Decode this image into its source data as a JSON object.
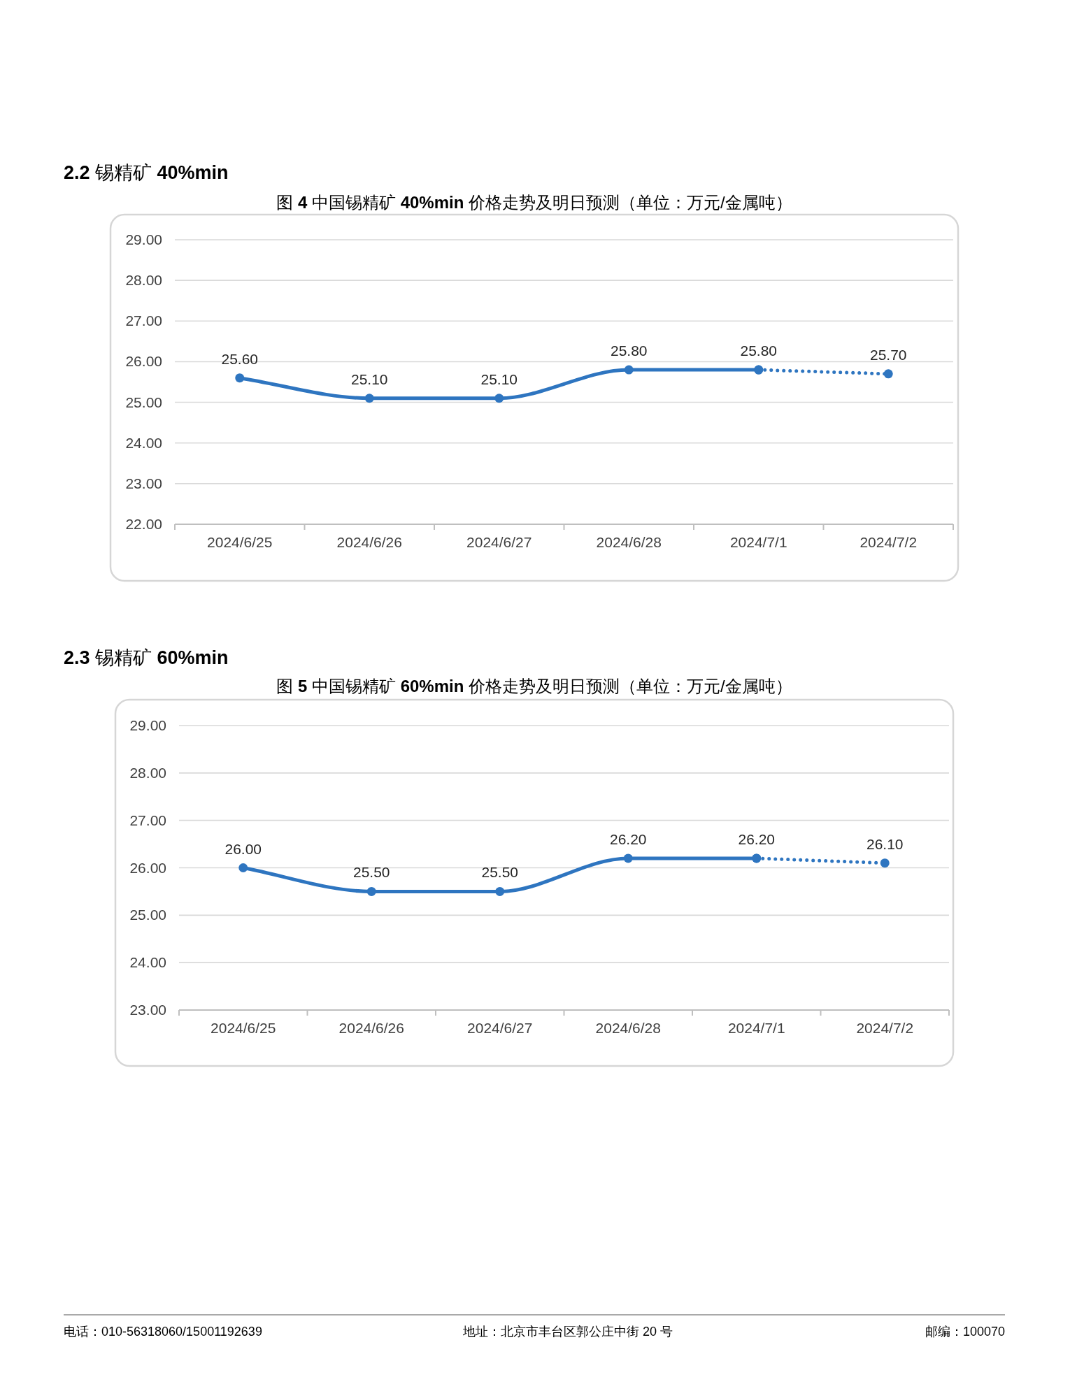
{
  "chart_data": [
    {
      "type": "line",
      "title": "**2.2** 锡精矿 **40%min**",
      "subtitle": "图 **4** 中国锡精矿 **40%min** 价格走势及明日预测（单位：万元/金属吨）",
      "categories": [
        "2024/6/25",
        "2024/6/26",
        "2024/6/27",
        "2024/6/28",
        "2024/7/1",
        "2024/7/2"
      ],
      "series": [
        {
          "color": "#2e75c0",
          "line_style": "solid",
          "values": [
            25.6,
            25.1,
            25.1,
            25.8,
            25.8,
            null
          ],
          "value_labels": [
            "25.60",
            "25.10",
            "25.10",
            "25.80",
            "25.80",
            null
          ]
        },
        {
          "color": "#2e75c0",
          "line_style": "dotted",
          "values": [
            null,
            null,
            null,
            null,
            25.8,
            25.7
          ],
          "value_labels": [
            null,
            null,
            null,
            null,
            null,
            "25.70"
          ]
        }
      ],
      "ylim": [
        22,
        29
      ],
      "yticks": [
        {
          "value": 22,
          "label": "22.00"
        },
        {
          "value": 23,
          "label": "23.00"
        },
        {
          "value": 24,
          "label": "24.00"
        },
        {
          "value": 25,
          "label": "25.00"
        },
        {
          "value": 26,
          "label": "26.00"
        },
        {
          "value": 27,
          "label": "27.00"
        },
        {
          "value": 28,
          "label": "28.00"
        },
        {
          "value": 29,
          "label": "29.00"
        }
      ],
      "grid": "y",
      "marker": "circle"
    },
    {
      "type": "line",
      "title": "**2.3** 锡精矿 **60%min**",
      "subtitle": "图 **5** 中国锡精矿 **60%min** 价格走势及明日预测（单位：万元/金属吨）",
      "categories": [
        "2024/6/25",
        "2024/6/26",
        "2024/6/27",
        "2024/6/28",
        "2024/7/1",
        "2024/7/2"
      ],
      "series": [
        {
          "color": "#2e75c0",
          "line_style": "solid",
          "values": [
            26.0,
            25.5,
            25.5,
            26.2,
            26.2,
            null
          ],
          "value_labels": [
            "26.00",
            "25.50",
            "25.50",
            "26.20",
            "26.20",
            null
          ]
        },
        {
          "color": "#2e75c0",
          "line_style": "dotted",
          "values": [
            null,
            null,
            null,
            null,
            26.2,
            26.1
          ],
          "value_labels": [
            null,
            null,
            null,
            null,
            null,
            "26.10"
          ]
        }
      ],
      "ylim": [
        23,
        29
      ],
      "yticks": [
        {
          "value": 23,
          "label": "23.00"
        },
        {
          "value": 24,
          "label": "24.00"
        },
        {
          "value": 25,
          "label": "25.00"
        },
        {
          "value": 26,
          "label": "26.00"
        },
        {
          "value": 27,
          "label": "27.00"
        },
        {
          "value": 28,
          "label": "28.00"
        },
        {
          "value": 29,
          "label": "29.00"
        }
      ],
      "grid": "y",
      "marker": "circle",
      "annotations": [
        "电话：010-56318060/15001192639",
        "地址：北京市丰台区郭公庄中街 20 号",
        "邮编：100070"
      ]
    }
  ]
}
